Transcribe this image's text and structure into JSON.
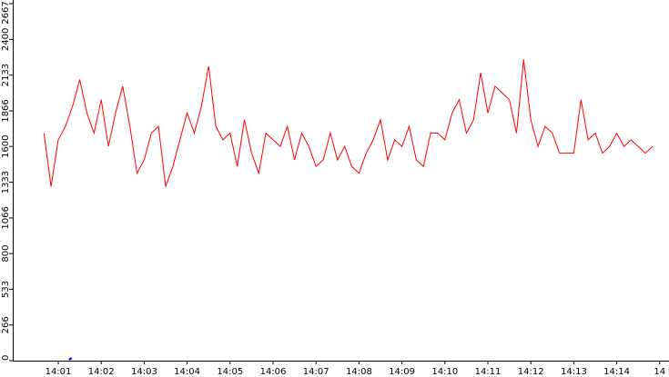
{
  "chart_data": {
    "type": "line",
    "title": "",
    "xlabel": "",
    "ylabel": "",
    "y_ticks": [
      "0",
      "266",
      "533",
      "800",
      "1066",
      "1333",
      "1600",
      "1866",
      "2133",
      "2400",
      "2667"
    ],
    "ylim": [
      0,
      2667
    ],
    "x_ticks": [
      "14:01",
      "14:02",
      "14:03",
      "14:04",
      "14:05",
      "14:06",
      "14:07",
      "14:08",
      "14:09",
      "14:10",
      "14:11",
      "14:12",
      "14:13",
      "14:14",
      "14"
    ],
    "x_range_minutes": [
      "14:00:40",
      "14:14:55"
    ],
    "grid": false,
    "legend": "none",
    "series": [
      {
        "color": "#ff0000",
        "baseline_marker_color": "#0000cc",
        "x": [
          "14:00:40",
          "14:00:50",
          "14:01:00",
          "14:01:10",
          "14:01:20",
          "14:01:30",
          "14:01:40",
          "14:01:50",
          "14:02:00",
          "14:02:10",
          "14:02:20",
          "14:02:30",
          "14:02:40",
          "14:02:50",
          "14:03:00",
          "14:03:10",
          "14:03:20",
          "14:03:30",
          "14:03:40",
          "14:03:50",
          "14:04:00",
          "14:04:10",
          "14:04:20",
          "14:04:30",
          "14:04:40",
          "14:04:50",
          "14:05:00",
          "14:05:10",
          "14:05:20",
          "14:05:30",
          "14:05:40",
          "14:05:50",
          "14:06:00",
          "14:06:10",
          "14:06:20",
          "14:06:30",
          "14:06:40",
          "14:06:50",
          "14:07:00",
          "14:07:10",
          "14:07:20",
          "14:07:30",
          "14:07:40",
          "14:07:50",
          "14:08:00",
          "14:08:10",
          "14:08:20",
          "14:08:30",
          "14:08:40",
          "14:08:50",
          "14:09:00",
          "14:09:10",
          "14:09:20",
          "14:09:30",
          "14:09:40",
          "14:09:50",
          "14:10:00",
          "14:10:10",
          "14:10:20",
          "14:10:30",
          "14:10:40",
          "14:10:50",
          "14:11:00",
          "14:11:10",
          "14:11:20",
          "14:11:30",
          "14:11:40",
          "14:11:50",
          "14:12:00",
          "14:12:10",
          "14:12:20",
          "14:12:30",
          "14:12:40",
          "14:12:50",
          "14:13:00",
          "14:13:10",
          "14:13:20",
          "14:13:30",
          "14:13:40",
          "14:13:50",
          "14:14:00",
          "14:14:10",
          "14:14:20",
          "14:14:30",
          "14:14:40",
          "14:14:50"
        ],
        "values": [
          1700,
          1300,
          1650,
          1750,
          1900,
          2100,
          1850,
          1700,
          1950,
          1600,
          1850,
          2050,
          1750,
          1400,
          1500,
          1700,
          1750,
          1300,
          1450,
          1650,
          1850,
          1700,
          1900,
          2200,
          1750,
          1650,
          1700,
          1450,
          1800,
          1550,
          1400,
          1700,
          1650,
          1600,
          1750,
          1500,
          1700,
          1600,
          1450,
          1500,
          1700,
          1500,
          1600,
          1450,
          1400,
          1550,
          1650,
          1800,
          1500,
          1650,
          1600,
          1750,
          1500,
          1450,
          1700,
          1700,
          1650,
          1850,
          1950,
          1700,
          1800,
          2150,
          1850,
          2050,
          2000,
          1950,
          1700,
          2250,
          1800,
          1600,
          1750,
          1700,
          1550,
          1550,
          1550,
          1950,
          1650,
          1700,
          1550,
          1600,
          1700,
          1600,
          1650,
          1600,
          1550,
          1600
        ]
      }
    ]
  }
}
